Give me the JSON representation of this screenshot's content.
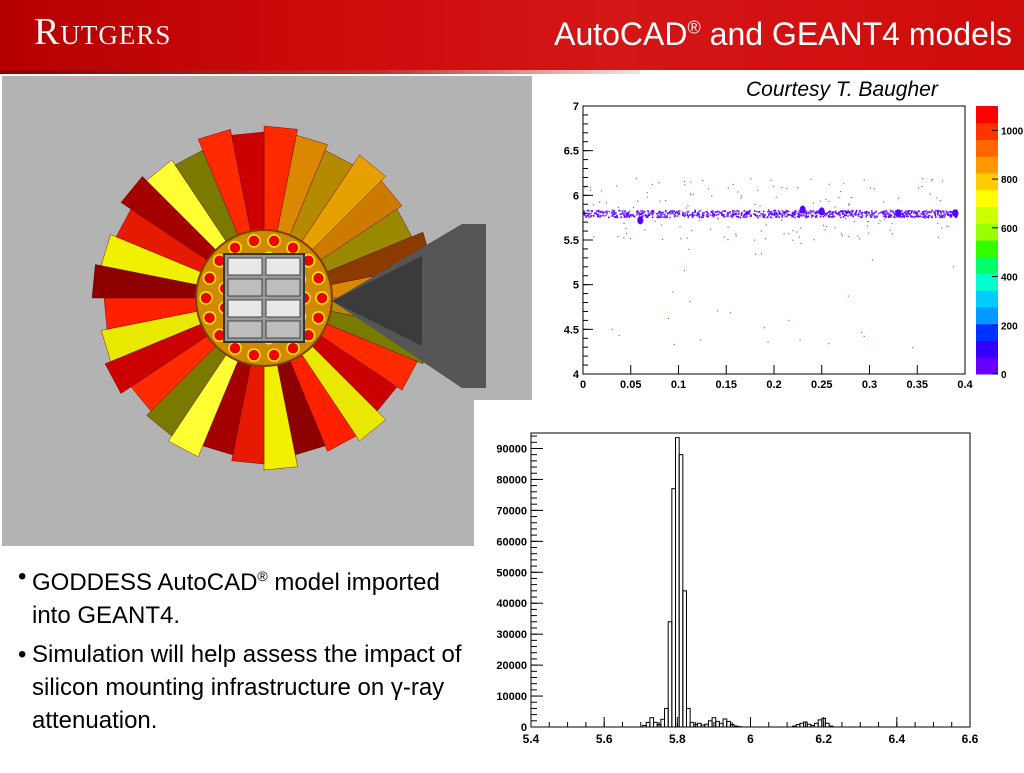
{
  "header": {
    "logo": "Rutgers",
    "title_main": "AutoCAD",
    "title_sup": "®",
    "title_rest": " and GEANT4 models",
    "bg_color": "#cc0a0a"
  },
  "courtesy": "Courtesy T. Baugher",
  "bullets": [
    {
      "pre": "GODDESS AutoCAD",
      "sup": "®",
      "post": " model imported into GEANT4."
    },
    {
      "pre": "Simulation will help assess the impact of silicon mounting infrastructure on ",
      "sup": "",
      "post": "γ-ray attenuation."
    }
  ],
  "chart_data": [
    {
      "type": "heatmap",
      "title": "",
      "xlabel": "",
      "ylabel": "",
      "xlim": [
        0,
        0.4
      ],
      "ylim": [
        4,
        7
      ],
      "x_ticks": [
        "0",
        "0.05",
        "0.1",
        "0.15",
        "0.2",
        "0.25",
        "0.3",
        "0.35",
        "0.4"
      ],
      "y_ticks": [
        "4",
        "4.5",
        "5",
        "5.5",
        "6",
        "6.5",
        "7"
      ],
      "band_y": 5.8,
      "band_halfwidth": 0.04,
      "colorbar_ticks": [
        "0",
        "200",
        "400",
        "600",
        "800",
        "1000"
      ],
      "colorbar_max": 1100
    },
    {
      "type": "bar",
      "title": "",
      "xlabel": "",
      "ylabel": "",
      "xlim": [
        5.4,
        6.6
      ],
      "ylim": [
        0,
        95000
      ],
      "x_ticks": [
        "5.4",
        "5.6",
        "5.8",
        "6",
        "6.2",
        "6.4",
        "6.6"
      ],
      "y_ticks": [
        "0",
        "10000",
        "20000",
        "30000",
        "40000",
        "50000",
        "60000",
        "70000",
        "80000",
        "90000"
      ],
      "bin_width": 0.01,
      "x": [
        5.71,
        5.72,
        5.73,
        5.74,
        5.75,
        5.76,
        5.77,
        5.78,
        5.79,
        5.8,
        5.81,
        5.82,
        5.83,
        5.84,
        5.85,
        5.86,
        5.87,
        5.88,
        5.89,
        5.9,
        5.91,
        5.92,
        5.93,
        5.94,
        5.95,
        5.96,
        5.97,
        6.12,
        6.13,
        6.14,
        6.15,
        6.16,
        6.17,
        6.18,
        6.19,
        6.2,
        6.21,
        6.22
      ],
      "values": [
        500,
        1500,
        3000,
        1500,
        800,
        2500,
        6000,
        34000,
        77000,
        93500,
        88000,
        44000,
        6000,
        1500,
        800,
        1200,
        600,
        900,
        2000,
        3000,
        1800,
        1200,
        2600,
        1800,
        800,
        300,
        100,
        300,
        800,
        1200,
        1600,
        900,
        500,
        1200,
        2300,
        2800,
        1200,
        300
      ]
    }
  ]
}
